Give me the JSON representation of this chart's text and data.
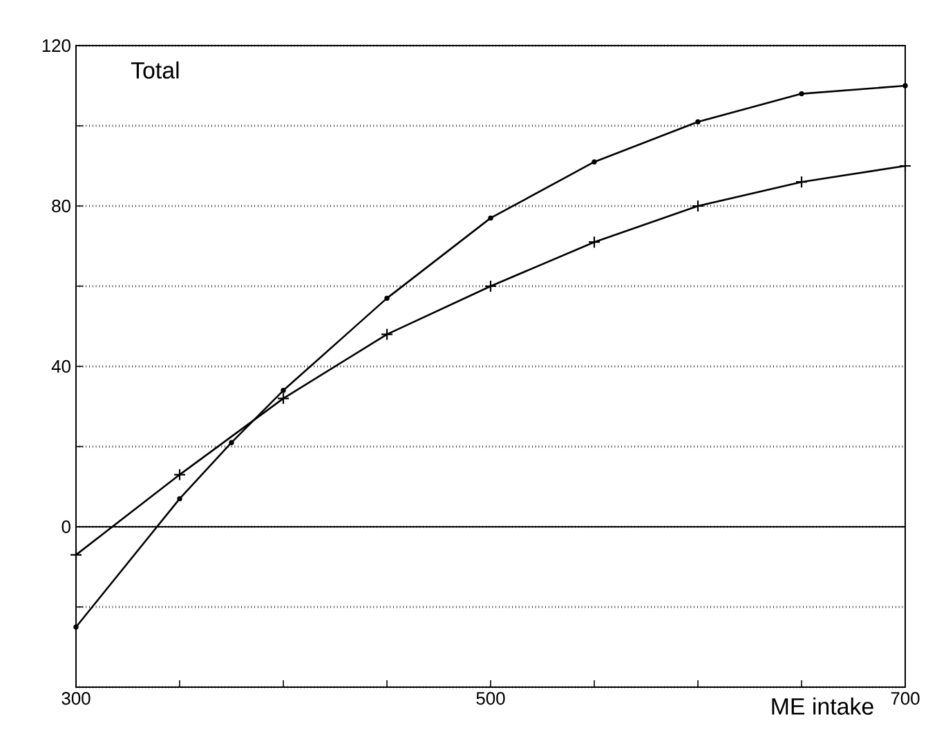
{
  "chart_data": {
    "type": "line",
    "title": "Total",
    "xlabel": "ME intake",
    "xlim": [
      300,
      700
    ],
    "ylim": [
      -40,
      120
    ],
    "xticks": [
      300,
      {
        "value": 350,
        "label": null
      },
      {
        "value": 400,
        "label": null
      },
      {
        "value": 450,
        "label": null
      },
      500,
      {
        "value": 550,
        "label": null
      },
      {
        "value": 600,
        "label": null
      },
      {
        "value": 650,
        "label": null
      },
      700
    ],
    "yticks": [
      {
        "value": -40,
        "label": null
      },
      {
        "value": -20,
        "label": null
      },
      0,
      {
        "value": 20,
        "label": null
      },
      40,
      {
        "value": 60,
        "label": null
      },
      80,
      {
        "value": 100,
        "label": null
      },
      120
    ],
    "grid": "y",
    "ref_lines": [
      {
        "axis": "y",
        "value": 0,
        "line_style": "solid",
        "color": "#000000"
      }
    ],
    "series": [
      {
        "color": "#000000",
        "marker": "circle",
        "line_style": "solid",
        "x": [
          300,
          350,
          375,
          400,
          450,
          500,
          550,
          600,
          650,
          700
        ],
        "values": [
          -25,
          7,
          21,
          34,
          57,
          77,
          91,
          101,
          108,
          110
        ]
      },
      {
        "color": "#000000",
        "marker": "cross",
        "line_style": "solid",
        "x": [
          300,
          350,
          400,
          450,
          500,
          550,
          600,
          650,
          700
        ],
        "values": [
          -7,
          13,
          32,
          48,
          60,
          71,
          80,
          86,
          90
        ]
      }
    ]
  }
}
